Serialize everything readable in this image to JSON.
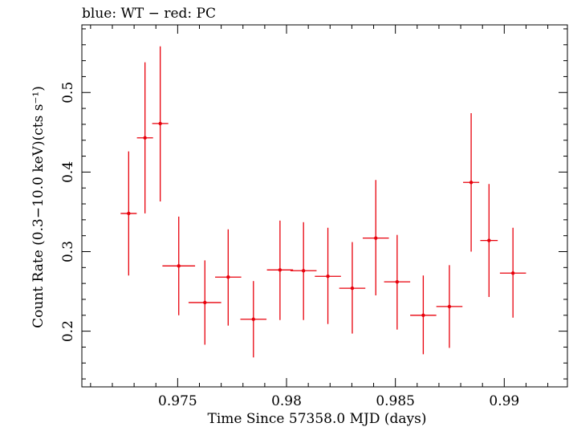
{
  "chart_data": {
    "type": "scatter",
    "title": "blue: WT − red: PC",
    "xlabel": "Time Since 57358.0 MJD (days)",
    "ylabel": "Count Rate (0.3−10.0 keV)(cts s⁻¹)",
    "xlim": [
      0.9706,
      0.9929
    ],
    "ylim": [
      0.13,
      0.585
    ],
    "x_ticks": [
      0.975,
      0.98,
      0.985,
      0.99
    ],
    "x_tick_labels": [
      "0.975",
      "0.98",
      "0.985",
      "0.99"
    ],
    "y_ticks": [
      0.2,
      0.3,
      0.4,
      0.5
    ],
    "y_tick_labels": [
      "0.2",
      "0.3",
      "0.4",
      "0.5"
    ],
    "grid": false,
    "legend": "none",
    "series": [
      {
        "color": "#e8000b",
        "points": [
          {
            "x": 0.97275,
            "y": 0.348,
            "xerr": 0.00037,
            "ylo": 0.27,
            "yhi": 0.426
          },
          {
            "x": 0.9735,
            "y": 0.443,
            "xerr": 0.00037,
            "ylo": 0.348,
            "yhi": 0.538
          },
          {
            "x": 0.9742,
            "y": 0.461,
            "xerr": 0.00037,
            "ylo": 0.363,
            "yhi": 0.558
          },
          {
            "x": 0.97505,
            "y": 0.282,
            "xerr": 0.00075,
            "ylo": 0.22,
            "yhi": 0.344
          },
          {
            "x": 0.97625,
            "y": 0.236,
            "xerr": 0.00075,
            "ylo": 0.183,
            "yhi": 0.289
          },
          {
            "x": 0.97732,
            "y": 0.268,
            "xerr": 0.0006,
            "ylo": 0.207,
            "yhi": 0.328
          },
          {
            "x": 0.97848,
            "y": 0.215,
            "xerr": 0.0006,
            "ylo": 0.167,
            "yhi": 0.263
          },
          {
            "x": 0.9797,
            "y": 0.277,
            "xerr": 0.0006,
            "ylo": 0.214,
            "yhi": 0.339
          },
          {
            "x": 0.98078,
            "y": 0.276,
            "xerr": 0.0006,
            "ylo": 0.214,
            "yhi": 0.337
          },
          {
            "x": 0.9819,
            "y": 0.269,
            "xerr": 0.0006,
            "ylo": 0.209,
            "yhi": 0.33
          },
          {
            "x": 0.98302,
            "y": 0.254,
            "xerr": 0.0006,
            "ylo": 0.197,
            "yhi": 0.312
          },
          {
            "x": 0.9841,
            "y": 0.317,
            "xerr": 0.0006,
            "ylo": 0.245,
            "yhi": 0.39
          },
          {
            "x": 0.98508,
            "y": 0.262,
            "xerr": 0.0006,
            "ylo": 0.202,
            "yhi": 0.321
          },
          {
            "x": 0.98628,
            "y": 0.22,
            "xerr": 0.0006,
            "ylo": 0.171,
            "yhi": 0.27
          },
          {
            "x": 0.98748,
            "y": 0.231,
            "xerr": 0.0006,
            "ylo": 0.179,
            "yhi": 0.283
          },
          {
            "x": 0.98848,
            "y": 0.387,
            "xerr": 0.00037,
            "ylo": 0.3,
            "yhi": 0.474
          },
          {
            "x": 0.9893,
            "y": 0.314,
            "xerr": 0.0004,
            "ylo": 0.243,
            "yhi": 0.385
          },
          {
            "x": 0.9904,
            "y": 0.273,
            "xerr": 0.0006,
            "ylo": 0.217,
            "yhi": 0.33
          }
        ]
      }
    ]
  }
}
